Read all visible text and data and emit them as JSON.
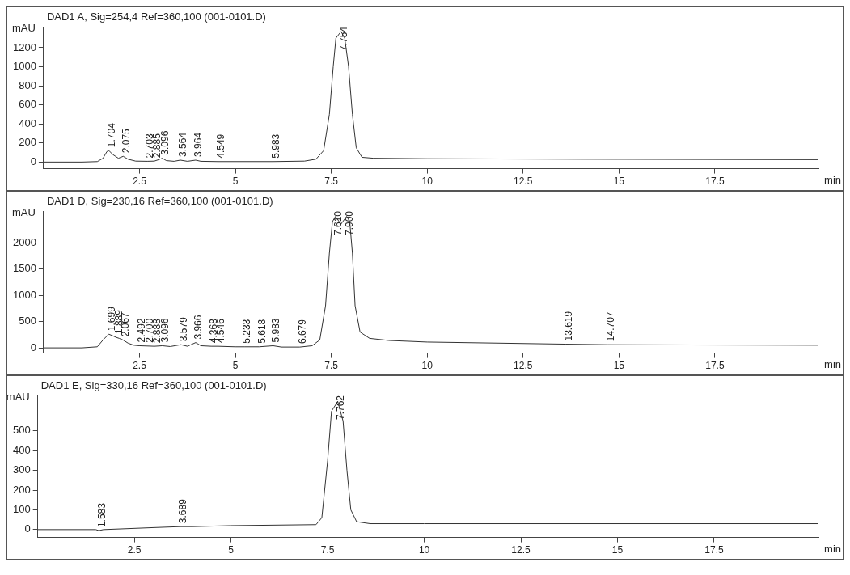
{
  "chart_data": [
    {
      "type": "line",
      "title": "DAD1 A, Sig=254,4 Ref=360,100 (001-0101.D)",
      "xlabel": "min",
      "ylabel": "mAU",
      "color": "#333333",
      "marker": "none",
      "xlim": [
        0,
        20.2
      ],
      "ylim": [
        -70,
        1420
      ],
      "xticks": [
        2.5,
        5,
        7.5,
        10,
        12.5,
        15,
        17.5
      ],
      "yticks": [
        0,
        200,
        400,
        600,
        800,
        1000,
        1200
      ],
      "x": [
        0,
        1.0,
        1.4,
        1.55,
        1.65,
        1.704,
        1.8,
        1.95,
        2.075,
        2.2,
        2.4,
        2.703,
        2.885,
        3.0,
        3.096,
        3.2,
        3.4,
        3.564,
        3.75,
        3.964,
        4.1,
        4.549,
        5.983,
        6.8,
        7.1,
        7.3,
        7.45,
        7.55,
        7.62,
        7.754,
        7.85,
        7.95,
        8.05,
        8.15,
        8.3,
        8.6,
        10,
        14,
        20.2
      ],
      "values": [
        0,
        0,
        5,
        40,
        110,
        120,
        80,
        40,
        60,
        30,
        10,
        8,
        10,
        25,
        40,
        15,
        8,
        20,
        8,
        20,
        8,
        5,
        5,
        10,
        30,
        120,
        500,
        1000,
        1300,
        1370,
        1300,
        1000,
        500,
        150,
        50,
        40,
        35,
        30,
        25
      ],
      "annotations": [
        {
          "text": "1.704",
          "x": 1.704,
          "y": 120
        },
        {
          "text": "2.075",
          "x": 2.075,
          "y": 60
        },
        {
          "text": "2.703",
          "x": 2.703,
          "y": 8
        },
        {
          "text": "2.885",
          "x": 2.885,
          "y": 10
        },
        {
          "text": "3.096",
          "x": 3.096,
          "y": 40
        },
        {
          "text": "3.564",
          "x": 3.564,
          "y": 20
        },
        {
          "text": "3.964",
          "x": 3.964,
          "y": 20
        },
        {
          "text": "4.549",
          "x": 4.549,
          "y": 5
        },
        {
          "text": "5.983",
          "x": 5.983,
          "y": 5
        },
        {
          "text": "7.754",
          "x": 7.754,
          "y": 1370
        }
      ]
    },
    {
      "type": "line",
      "title": "DAD1 D, Sig=230,16 Ref=360,100 (001-0101.D)",
      "xlabel": "min",
      "ylabel": "mAU",
      "color": "#333333",
      "marker": "none",
      "xlim": [
        0,
        20.2
      ],
      "ylim": [
        -100,
        2600
      ],
      "xticks": [
        2.5,
        5,
        7.5,
        10,
        12.5,
        15,
        17.5
      ],
      "yticks": [
        0,
        500,
        1000,
        1500,
        2000
      ],
      "x": [
        0,
        1.0,
        1.4,
        1.55,
        1.699,
        1.8,
        1.889,
        1.97,
        2.067,
        2.2,
        2.35,
        2.492,
        2.7,
        2.888,
        3.096,
        3.3,
        3.579,
        3.75,
        3.966,
        4.1,
        4.368,
        4.546,
        5.0,
        5.233,
        5.618,
        5.983,
        6.2,
        6.679,
        7.0,
        7.2,
        7.35,
        7.45,
        7.53,
        7.61,
        7.75,
        7.9,
        7.98,
        8.05,
        8.12,
        8.25,
        8.5,
        9.0,
        10,
        13.619,
        14.707,
        17,
        20.2
      ],
      "values": [
        0,
        0,
        20,
        150,
        260,
        230,
        200,
        180,
        150,
        90,
        50,
        40,
        35,
        30,
        40,
        25,
        60,
        30,
        100,
        40,
        30,
        30,
        20,
        20,
        20,
        40,
        15,
        15,
        40,
        150,
        800,
        1800,
        2400,
        2500,
        2350,
        2500,
        2400,
        1800,
        800,
        300,
        180,
        140,
        110,
        70,
        60,
        55,
        50
      ],
      "annotations": [
        {
          "text": "1.699",
          "x": 1.699,
          "y": 260
        },
        {
          "text": "1.889",
          "x": 1.889,
          "y": 200
        },
        {
          "text": "2.067",
          "x": 2.067,
          "y": 150
        },
        {
          "text": "2.492",
          "x": 2.492,
          "y": 40
        },
        {
          "text": "2.700",
          "x": 2.7,
          "y": 35
        },
        {
          "text": "2.888",
          "x": 2.888,
          "y": 30
        },
        {
          "text": "3.096",
          "x": 3.096,
          "y": 40
        },
        {
          "text": "3.579",
          "x": 3.579,
          "y": 60
        },
        {
          "text": "3.966",
          "x": 3.966,
          "y": 100
        },
        {
          "text": "4.368",
          "x": 4.368,
          "y": 30
        },
        {
          "text": "4.546",
          "x": 4.546,
          "y": 30
        },
        {
          "text": "5.233",
          "x": 5.233,
          "y": 20
        },
        {
          "text": "5.618",
          "x": 5.618,
          "y": 20
        },
        {
          "text": "5.983",
          "x": 5.983,
          "y": 40
        },
        {
          "text": "6.679",
          "x": 6.679,
          "y": 15
        },
        {
          "text": "7.610",
          "x": 7.61,
          "y": 2500
        },
        {
          "text": "7.900",
          "x": 7.9,
          "y": 2500
        },
        {
          "text": "13.619",
          "x": 13.619,
          "y": 70
        },
        {
          "text": "14.707",
          "x": 14.707,
          "y": 60
        }
      ]
    },
    {
      "type": "line",
      "title": "DAD1 E, Sig=330,16 Ref=360,100 (001-0101.D)",
      "xlabel": "min",
      "ylabel": "mAU",
      "color": "#333333",
      "marker": "none",
      "xlim": [
        0,
        20.2
      ],
      "ylim": [
        -40,
        680
      ],
      "xticks": [
        2.5,
        5,
        7.5,
        10,
        12.5,
        15,
        17.5
      ],
      "yticks": [
        0,
        100,
        200,
        300,
        400,
        500
      ],
      "x": [
        0,
        1.5,
        1.583,
        1.7,
        3.0,
        3.689,
        4,
        5,
        7.2,
        7.35,
        7.5,
        7.6,
        7.762,
        7.9,
        8.0,
        8.1,
        8.25,
        8.6,
        10,
        20.2
      ],
      "values": [
        0,
        0,
        -5,
        0,
        10,
        15,
        15,
        20,
        25,
        60,
        350,
        600,
        650,
        550,
        300,
        100,
        40,
        30,
        30,
        30
      ],
      "annotations": [
        {
          "text": "1.583",
          "x": 1.583,
          "y": -5
        },
        {
          "text": "3.689",
          "x": 3.689,
          "y": 15
        },
        {
          "text": "7.762",
          "x": 7.762,
          "y": 650
        }
      ]
    }
  ]
}
